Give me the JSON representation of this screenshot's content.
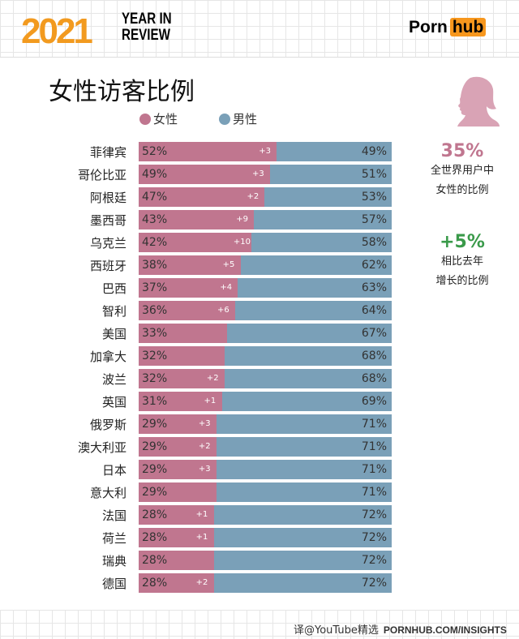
{
  "header": {
    "year": "2021",
    "year_in_review": [
      "YEAR IN",
      "REVIEW"
    ],
    "brand": [
      "Porn",
      "hub"
    ]
  },
  "chart_data": {
    "type": "bar",
    "stacked": true,
    "orientation": "horizontal",
    "title": "女性访客比例",
    "legend": [
      "女性",
      "男性"
    ],
    "colors": {
      "female": "#c0768f",
      "male": "#7aa0b8"
    },
    "categories": [
      "菲律宾",
      "哥伦比亚",
      "阿根廷",
      "墨西哥",
      "乌克兰",
      "西班牙",
      "巴西",
      "智利",
      "美国",
      "加拿大",
      "波兰",
      "英国",
      "俄罗斯",
      "澳大利亚",
      "日本",
      "意大利",
      "法国",
      "荷兰",
      "瑞典",
      "德国"
    ],
    "series": [
      {
        "name": "女性",
        "values": [
          52,
          49,
          47,
          43,
          42,
          38,
          37,
          36,
          33,
          32,
          32,
          31,
          29,
          29,
          29,
          29,
          28,
          28,
          28,
          28
        ]
      },
      {
        "name": "男性",
        "values": [
          49,
          51,
          53,
          57,
          58,
          62,
          63,
          64,
          67,
          68,
          68,
          69,
          71,
          71,
          71,
          71,
          72,
          72,
          72,
          72
        ]
      }
    ],
    "female_change": [
      "+3",
      "+3",
      "+2",
      "+9",
      "+10",
      "+5",
      "+4",
      "+6",
      "",
      "",
      "+2",
      "+1",
      "+3",
      "+2",
      "+3",
      "",
      "+1",
      "+1",
      "",
      "+2"
    ]
  },
  "side": {
    "stat1": "35%",
    "stat1_label": [
      "全世界用户中",
      "女性的比例"
    ],
    "stat2": "+5%",
    "stat2_label": [
      "相比去年",
      "增长的比例"
    ],
    "stat1_color": "#c0768f",
    "stat2_color": "#3a9a4a"
  },
  "footer": {
    "credit": "译@YouTube精选",
    "url": "PORNHUB.COM/INSIGHTS"
  }
}
